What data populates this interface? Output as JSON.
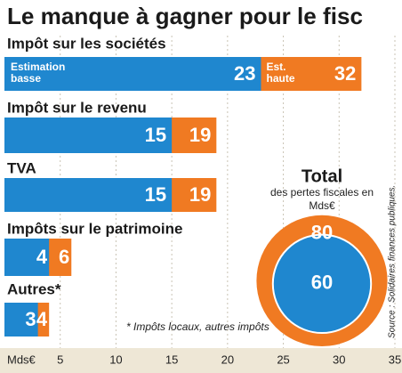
{
  "chart_data": {
    "type": "bar",
    "orientation": "horizontal",
    "title": "Le manque à gagner pour le fisc",
    "categories": [
      "Impôt sur les sociétés",
      "Impôt sur le revenu",
      "TVA",
      "Impôts sur le patrimoine",
      "Autres*"
    ],
    "series": [
      {
        "name": "Estimation basse",
        "color": "#1f87cf",
        "values": [
          23,
          15,
          15,
          4,
          3
        ]
      },
      {
        "name": "Est. haute",
        "color": "#f07a22",
        "values": [
          32,
          19,
          19,
          6,
          4
        ]
      }
    ],
    "xlabel": "Mds€",
    "xlim": [
      0,
      35
    ],
    "xticks": [
      5,
      10,
      15,
      20,
      25,
      30,
      35
    ],
    "grid": true,
    "footnote": "* Impôts locaux, autres impôts",
    "source": "Source : Solidaires finances publiques.",
    "total": {
      "title": "Total",
      "subtitle": "des pertes fiscales en Mds€",
      "low": 60,
      "high": 80
    }
  }
}
